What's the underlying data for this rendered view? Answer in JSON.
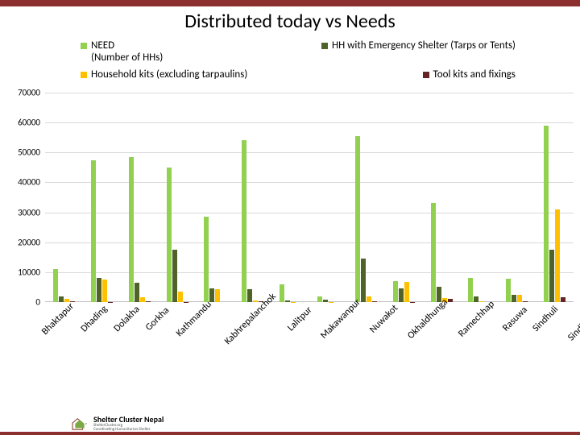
{
  "title": "Distributed today vs Needs",
  "top_bar_color": "#8c2f2f",
  "legend": [
    {
      "label": "NEED\n(Number of HHs)",
      "color": "#92d050"
    },
    {
      "label": "HH with Emergency Shelter (Tarps or Tents)",
      "color": "#4f6228"
    },
    {
      "label": "Household kits (excluding tarpaulins)",
      "color": "#ffc000"
    },
    {
      "label": "Tool kits and fixings",
      "color": "#632523"
    }
  ],
  "chart": {
    "type": "bar",
    "ymax": 70000,
    "ytick_step": 10000,
    "grid_color": "#d9d9d9",
    "series_colors": [
      "#92d050",
      "#4f6228",
      "#ffc000",
      "#632523"
    ],
    "categories": [
      "Bhaktapur",
      "Dhading",
      "Dolakha",
      "Gorkha",
      "Kathmandu",
      "Kabhrepalanchok",
      "Lalitpur",
      "Makawanpur",
      "Nuwakot",
      "Okhaldhunga",
      "Ramechhap",
      "Rasuwa",
      "Sindhuli",
      "Sindhupalchok"
    ],
    "data": [
      [
        11000,
        1800,
        1200,
        200
      ],
      [
        47500,
        8000,
        7500,
        100
      ],
      [
        48500,
        6500,
        1700,
        200
      ],
      [
        45000,
        17500,
        3500,
        100
      ],
      [
        28500,
        4500,
        4300,
        0
      ],
      [
        54000,
        4200,
        600,
        150
      ],
      [
        6000,
        500,
        100,
        0
      ],
      [
        2000,
        900,
        100,
        0
      ],
      [
        55500,
        14500,
        1800,
        300
      ],
      [
        7000,
        4500,
        6700,
        100
      ],
      [
        33000,
        5200,
        1300,
        1100
      ],
      [
        8000,
        1800,
        300,
        0
      ],
      [
        7800,
        2500,
        2400,
        200
      ],
      [
        59000,
        17500,
        31000,
        1500
      ]
    ]
  },
  "footer": {
    "title": "Shelter Cluster Nepal",
    "sub1": "ShelterCluster.org",
    "sub2": "Coordinating Humanitarian Shelter",
    "logo_green": "#7aa843",
    "logo_brown": "#8c4a2f"
  }
}
